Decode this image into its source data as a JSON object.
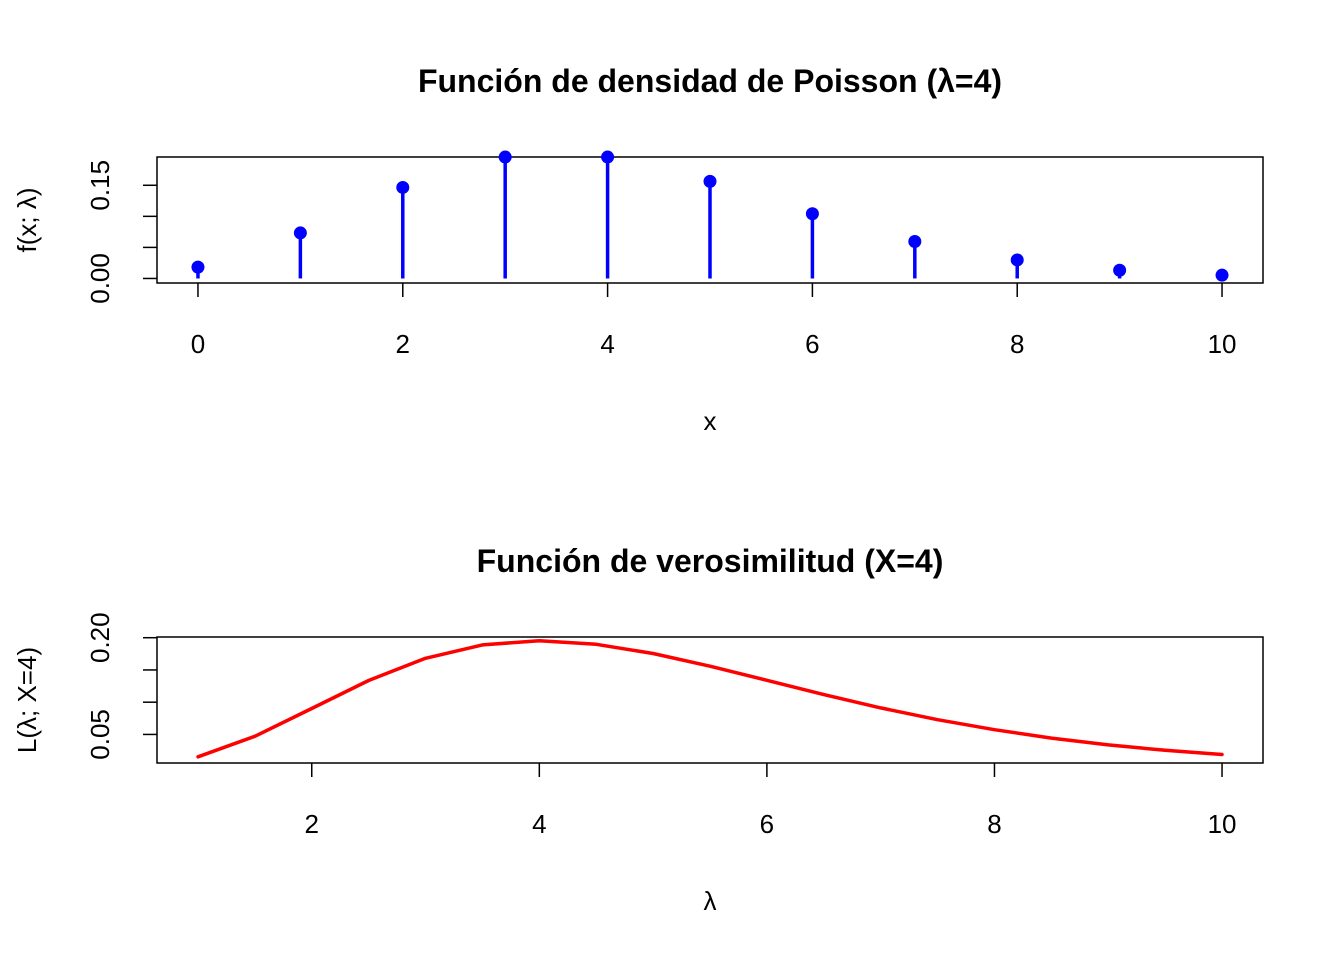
{
  "chart_data": [
    {
      "type": "stem",
      "title": "Función de densidad de Poisson (λ=4)",
      "xlabel": "x",
      "ylabel": "f(x; λ)",
      "xlim": [
        -0.4,
        10.4
      ],
      "ylim": [
        -0.0073,
        0.1955
      ],
      "x_ticks": [
        0,
        2,
        4,
        6,
        8,
        10
      ],
      "x_tick_labels": [
        "0",
        "2",
        "4",
        "6",
        "8",
        "10"
      ],
      "y_ticks": [
        0.0,
        0.05,
        0.1,
        0.15
      ],
      "y_tick_labels": [
        "0.00",
        "",
        "",
        "0.15"
      ],
      "color": "#0000ff",
      "x": [
        0,
        1,
        2,
        3,
        4,
        5,
        6,
        7,
        8,
        9,
        10
      ],
      "values": [
        0.0183,
        0.0733,
        0.1465,
        0.1954,
        0.1954,
        0.1563,
        0.1042,
        0.0595,
        0.0298,
        0.0132,
        0.0053
      ],
      "grid": false
    },
    {
      "type": "line",
      "title": "Función de verosimilitud (X=4)",
      "xlabel": "λ",
      "ylabel": "L(λ; X=4)",
      "xlim": [
        0.64,
        10.36
      ],
      "ylim": [
        0.0057,
        0.2011
      ],
      "x_ticks": [
        2,
        4,
        6,
        8,
        10
      ],
      "x_tick_labels": [
        "2",
        "4",
        "6",
        "8",
        "10"
      ],
      "y_ticks": [
        0.05,
        0.1,
        0.15,
        0.2
      ],
      "y_tick_labels": [
        "0.05",
        "",
        "",
        "0.20"
      ],
      "color": "#ff0000",
      "lambda": [
        1.0,
        1.5,
        2.0,
        2.5,
        3.0,
        3.5,
        4.0,
        4.5,
        5.0,
        5.5,
        6.0,
        6.5,
        7.0,
        7.5,
        8.0,
        8.5,
        9.0,
        9.5,
        10.0
      ],
      "values": [
        0.0153,
        0.0471,
        0.0902,
        0.1336,
        0.168,
        0.1888,
        0.1954,
        0.1898,
        0.1755,
        0.1558,
        0.1339,
        0.1118,
        0.0912,
        0.0729,
        0.0573,
        0.0443,
        0.0337,
        0.0254,
        0.0189
      ],
      "grid": false
    }
  ]
}
